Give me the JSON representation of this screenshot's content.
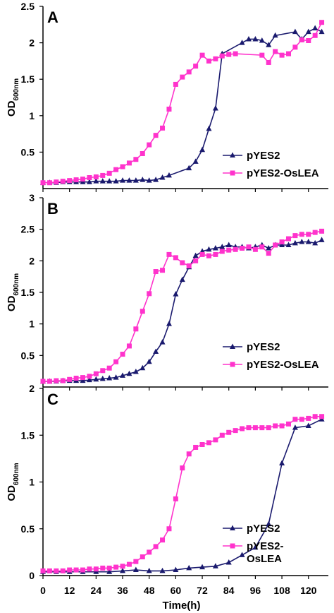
{
  "figure": {
    "xlabel": "Time(h)",
    "xticks": [
      0,
      12,
      24,
      36,
      48,
      60,
      72,
      84,
      96,
      108,
      120
    ],
    "xlim": [
      0,
      129
    ],
    "colors": {
      "pYES2": "#1a1a6e",
      "pYES2-OsLEA": "#ff33cc"
    }
  },
  "chart_data": [
    {
      "type": "line",
      "panel": "A",
      "ylabel": "OD600nm",
      "ylim": [
        0,
        2.5
      ],
      "yticks": [
        0.5,
        1,
        1.5,
        2,
        2.5
      ],
      "legend": [
        "pYES2",
        "pYES2-OsLEA"
      ],
      "legend_position": "bottom-right",
      "series": [
        {
          "name": "pYES2",
          "marker": "triangle",
          "x": [
            0,
            3,
            6,
            9,
            12,
            15,
            18,
            21,
            24,
            27,
            30,
            33,
            36,
            39,
            42,
            45,
            48,
            51,
            54,
            57,
            66,
            69,
            72,
            75,
            78,
            81,
            90,
            93,
            96,
            99,
            102,
            105,
            114,
            117,
            120,
            123,
            126
          ],
          "y": [
            0.08,
            0.08,
            0.08,
            0.09,
            0.09,
            0.09,
            0.09,
            0.09,
            0.1,
            0.1,
            0.1,
            0.1,
            0.11,
            0.11,
            0.11,
            0.12,
            0.11,
            0.12,
            0.15,
            0.18,
            0.28,
            0.37,
            0.53,
            0.82,
            1.1,
            1.85,
            2.0,
            2.05,
            2.05,
            2.03,
            1.97,
            2.1,
            2.15,
            2.05,
            2.15,
            2.2,
            2.15
          ]
        },
        {
          "name": "pYES2-OsLEA",
          "marker": "square",
          "x": [
            0,
            3,
            6,
            9,
            12,
            15,
            18,
            21,
            24,
            27,
            30,
            33,
            36,
            39,
            42,
            45,
            48,
            51,
            54,
            57,
            60,
            63,
            66,
            69,
            72,
            75,
            78,
            81,
            84,
            87,
            99,
            102,
            105,
            108,
            111,
            114,
            117,
            120,
            123,
            126
          ],
          "y": [
            0.08,
            0.08,
            0.09,
            0.1,
            0.11,
            0.12,
            0.13,
            0.15,
            0.16,
            0.18,
            0.21,
            0.26,
            0.3,
            0.35,
            0.4,
            0.48,
            0.6,
            0.73,
            0.83,
            1.09,
            1.43,
            1.53,
            1.6,
            1.68,
            1.83,
            1.75,
            1.78,
            1.82,
            1.84,
            1.85,
            1.83,
            1.73,
            1.88,
            1.83,
            1.85,
            1.94,
            2.04,
            2.03,
            2.1,
            2.28
          ]
        }
      ]
    },
    {
      "type": "line",
      "panel": "B",
      "ylabel": "OD600nm",
      "ylim": [
        0,
        3
      ],
      "yticks": [
        0.5,
        1,
        1.5,
        2,
        2.5,
        3
      ],
      "legend": [
        "pYES2",
        "pYES2-OsLEA"
      ],
      "legend_position": "bottom-right",
      "series": [
        {
          "name": "pYES2",
          "marker": "triangle",
          "x": [
            0,
            3,
            6,
            9,
            12,
            15,
            18,
            21,
            24,
            27,
            30,
            33,
            36,
            39,
            42,
            45,
            48,
            51,
            54,
            57,
            60,
            63,
            66,
            69,
            72,
            75,
            78,
            81,
            84,
            87,
            90,
            93,
            96,
            99,
            102,
            105,
            108,
            111,
            114,
            117,
            120,
            123,
            126
          ],
          "y": [
            0.09,
            0.09,
            0.09,
            0.1,
            0.1,
            0.1,
            0.1,
            0.11,
            0.12,
            0.13,
            0.14,
            0.15,
            0.18,
            0.21,
            0.24,
            0.3,
            0.4,
            0.56,
            0.71,
            1.0,
            1.47,
            1.7,
            1.9,
            2.08,
            2.15,
            2.18,
            2.2,
            2.22,
            2.25,
            2.22,
            2.22,
            2.2,
            2.22,
            2.25,
            2.2,
            2.25,
            2.25,
            2.25,
            2.28,
            2.3,
            2.3,
            2.28,
            2.33
          ]
        },
        {
          "name": "pYES2-OsLEA",
          "marker": "square",
          "x": [
            0,
            3,
            6,
            9,
            12,
            15,
            18,
            21,
            24,
            27,
            30,
            33,
            36,
            39,
            42,
            45,
            48,
            51,
            54,
            57,
            60,
            63,
            66,
            69,
            72,
            75,
            78,
            81,
            84,
            87,
            90,
            93,
            96,
            99,
            102,
            105,
            108,
            111,
            114,
            117,
            120,
            123,
            126
          ],
          "y": [
            0.09,
            0.09,
            0.1,
            0.1,
            0.12,
            0.14,
            0.15,
            0.17,
            0.21,
            0.26,
            0.3,
            0.4,
            0.52,
            0.65,
            0.92,
            1.2,
            1.48,
            1.83,
            1.85,
            2.1,
            2.05,
            1.97,
            1.92,
            2.0,
            2.1,
            2.08,
            2.1,
            2.15,
            2.17,
            2.18,
            2.2,
            2.22,
            2.18,
            2.22,
            2.12,
            2.25,
            2.3,
            2.35,
            2.4,
            2.42,
            2.42,
            2.45,
            2.47
          ]
        }
      ]
    },
    {
      "type": "line",
      "panel": "C",
      "ylabel": "OD600nm",
      "ylim": [
        0,
        2
      ],
      "yticks": [
        0,
        0.5,
        1,
        1.5,
        2
      ],
      "xlabel": "Time(h)",
      "legend": [
        "pYES2",
        "pYES2-OsLEA"
      ],
      "legend_position": "bottom-right",
      "series": [
        {
          "name": "pYES2",
          "marker": "triangle",
          "x": [
            0,
            6,
            12,
            18,
            24,
            30,
            36,
            42,
            48,
            54,
            60,
            66,
            72,
            78,
            84,
            90,
            96,
            102,
            108,
            114,
            120,
            126
          ],
          "y": [
            0.04,
            0.04,
            0.04,
            0.04,
            0.04,
            0.04,
            0.05,
            0.06,
            0.05,
            0.05,
            0.06,
            0.08,
            0.09,
            0.1,
            0.14,
            0.22,
            0.3,
            0.55,
            1.2,
            1.58,
            1.6,
            1.67
          ]
        },
        {
          "name": "pYES2-OsLEA",
          "marker": "square",
          "x": [
            0,
            3,
            6,
            9,
            12,
            15,
            18,
            21,
            24,
            27,
            30,
            33,
            36,
            39,
            42,
            45,
            48,
            51,
            54,
            57,
            60,
            63,
            66,
            69,
            72,
            75,
            78,
            81,
            84,
            87,
            90,
            93,
            96,
            99,
            102,
            105,
            108,
            111,
            114,
            117,
            120,
            123,
            126
          ],
          "y": [
            0.05,
            0.05,
            0.05,
            0.05,
            0.06,
            0.06,
            0.06,
            0.07,
            0.07,
            0.08,
            0.08,
            0.09,
            0.1,
            0.12,
            0.15,
            0.2,
            0.25,
            0.31,
            0.38,
            0.5,
            0.82,
            1.15,
            1.3,
            1.37,
            1.4,
            1.42,
            1.45,
            1.5,
            1.53,
            1.55,
            1.57,
            1.58,
            1.58,
            1.58,
            1.58,
            1.6,
            1.6,
            1.62,
            1.67,
            1.67,
            1.68,
            1.7,
            1.7
          ]
        }
      ]
    }
  ]
}
